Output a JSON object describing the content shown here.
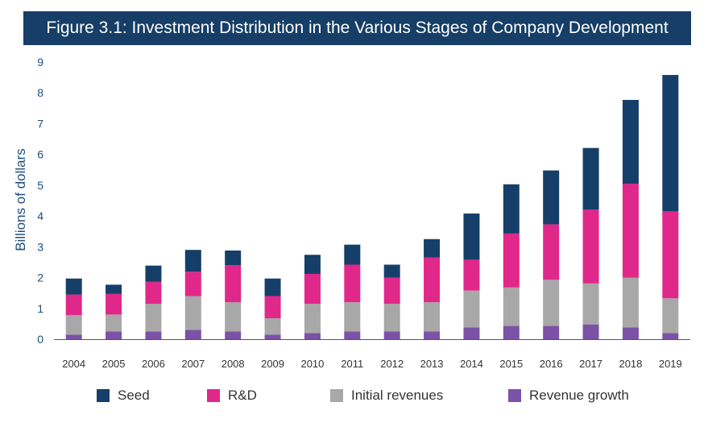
{
  "title": "Figure 3.1: Investment Distribution in the Various Stages of Company Development",
  "chart_data": {
    "type": "bar",
    "stacked": true,
    "title": "Figure 3.1: Investment Distribution in the Various Stages of Company Development",
    "xlabel": "",
    "ylabel": "Billions of dollars",
    "ylim": [
      0,
      9
    ],
    "yticks": [
      "0",
      "1",
      "2",
      "3",
      "4",
      "5",
      "6",
      "7",
      "8",
      "9"
    ],
    "grid": false,
    "legend_position": "bottom",
    "categories": [
      "2004",
      "2005",
      "2006",
      "2007",
      "2008",
      "2009",
      "2010",
      "2011",
      "2012",
      "2013",
      "2014",
      "2015",
      "2016",
      "2017",
      "2018",
      "2019"
    ],
    "series": [
      {
        "name": "Revenue growth",
        "color": "#7b52a6",
        "values": [
          0.15,
          0.25,
          0.25,
          0.3,
          0.25,
          0.15,
          0.2,
          0.25,
          0.25,
          0.25,
          0.38,
          0.43,
          0.43,
          0.48,
          0.38,
          0.2
        ]
      },
      {
        "name": "Initial revenues",
        "color": "#a8a8a8",
        "values": [
          0.63,
          0.55,
          0.9,
          1.1,
          0.95,
          0.53,
          0.95,
          0.95,
          0.9,
          0.95,
          1.2,
          1.25,
          1.5,
          1.33,
          1.62,
          1.13
        ]
      },
      {
        "name": "R&D",
        "color": "#e0288a",
        "values": [
          0.67,
          0.67,
          0.72,
          0.79,
          1.2,
          0.72,
          0.97,
          1.22,
          0.85,
          1.45,
          1.0,
          1.75,
          1.8,
          2.4,
          3.05,
          2.82
        ]
      },
      {
        "name": "Seed",
        "color": "#153f69",
        "values": [
          0.52,
          0.3,
          0.52,
          0.71,
          0.48,
          0.57,
          0.62,
          0.65,
          0.42,
          0.6,
          1.5,
          1.6,
          1.75,
          2.0,
          2.72,
          4.43
        ]
      }
    ],
    "legend_order": [
      "Seed",
      "R&D",
      "Initial revenues",
      "Revenue growth"
    ]
  }
}
